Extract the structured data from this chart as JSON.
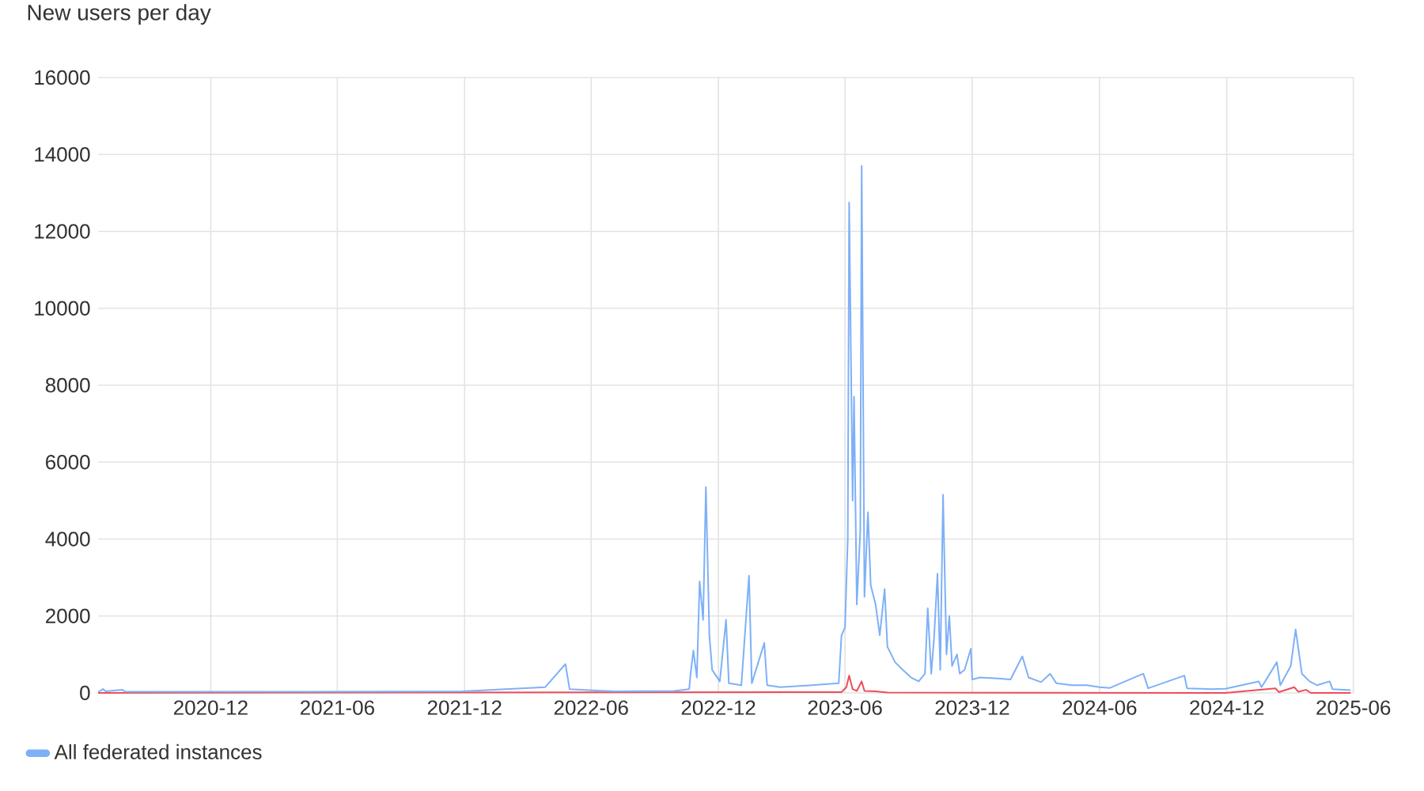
{
  "chart_data": {
    "type": "line",
    "title": "New users per day",
    "xlim": [
      "2020-06-22",
      "2025-06-01"
    ],
    "xticks": [
      "2020-12",
      "2021-06",
      "2021-12",
      "2022-06",
      "2022-12",
      "2023-06",
      "2023-12",
      "2024-06",
      "2024-12",
      "2025-06"
    ],
    "ylim": [
      0,
      16000
    ],
    "yticks": [
      0,
      2000,
      4000,
      6000,
      8000,
      10000,
      12000,
      14000,
      16000
    ],
    "grid": true,
    "legend": "bottom left",
    "series": [
      {
        "color": "#ee4d5a",
        "x": [
          "2020-06-22",
          "2023-05-27",
          "2023-06-03",
          "2023-06-07",
          "2023-06-12",
          "2023-06-18",
          "2023-06-25",
          "2023-06-29",
          "2023-07-15",
          "2023-08-01",
          "2024-11-29",
          "2025-02-09",
          "2025-02-14",
          "2025-03-08",
          "2025-03-14",
          "2025-03-25",
          "2025-04-01",
          "2025-05-28"
        ],
        "values": [
          0,
          20,
          150,
          450,
          100,
          50,
          300,
          50,
          40,
          10,
          0,
          120,
          20,
          150,
          30,
          80,
          0,
          0
        ]
      },
      {
        "name": "All federated instances",
        "color": "#7eb0f8",
        "x": [
          "2020-06-22",
          "2020-06-29",
          "2020-07-03",
          "2020-07-27",
          "2020-07-31",
          "2020-09-13",
          "2021-04-20",
          "2021-11-27",
          "2022-03-27",
          "2022-04-25",
          "2022-05-01",
          "2022-07-04",
          "2022-09-28",
          "2022-10-20",
          "2022-10-22",
          "2022-10-26",
          "2022-10-31",
          "2022-11-04",
          "2022-11-09",
          "2022-11-13",
          "2022-11-18",
          "2022-11-22",
          "2022-12-03",
          "2022-12-12",
          "2022-12-16",
          "2023-01-03",
          "2023-01-14",
          "2023-01-18",
          "2023-02-05",
          "2023-02-09",
          "2023-02-28",
          "2023-04-14",
          "2023-05-23",
          "2023-05-27",
          "2023-06-01",
          "2023-06-05",
          "2023-06-07",
          "2023-06-12",
          "2023-06-14",
          "2023-06-18",
          "2023-06-23",
          "2023-06-25",
          "2023-06-29",
          "2023-07-04",
          "2023-07-08",
          "2023-07-15",
          "2023-07-21",
          "2023-07-28",
          "2023-08-01",
          "2023-08-12",
          "2023-08-23",
          "2023-09-04",
          "2023-09-15",
          "2023-09-24",
          "2023-09-28",
          "2023-10-03",
          "2023-10-07",
          "2023-10-12",
          "2023-10-16",
          "2023-10-20",
          "2023-10-25",
          "2023-10-29",
          "2023-11-02",
          "2023-11-09",
          "2023-11-13",
          "2023-11-20",
          "2023-11-29",
          "2023-12-01",
          "2023-12-12",
          "2024-01-03",
          "2024-01-25",
          "2024-02-11",
          "2024-02-20",
          "2024-03-09",
          "2024-03-22",
          "2024-03-31",
          "2024-04-22",
          "2024-05-14",
          "2024-06-01",
          "2024-06-16",
          "2024-08-03",
          "2024-08-10",
          "2024-10-01",
          "2024-10-05",
          "2024-11-08",
          "2024-11-29",
          "2025-01-16",
          "2025-01-20",
          "2025-02-11",
          "2025-02-16",
          "2025-03-03",
          "2025-03-10",
          "2025-03-19",
          "2025-03-30",
          "2025-04-10",
          "2025-04-28",
          "2025-05-02",
          "2025-05-28"
        ],
        "values": [
          20,
          100,
          40,
          80,
          30,
          30,
          30,
          40,
          150,
          750,
          100,
          40,
          50,
          100,
          500,
          1100,
          400,
          2900,
          1900,
          5350,
          1500,
          600,
          300,
          1900,
          250,
          200,
          3050,
          250,
          1300,
          200,
          150,
          200,
          250,
          1500,
          1700,
          4000,
          12750,
          5000,
          7700,
          2300,
          4200,
          13700,
          2500,
          4700,
          2800,
          2300,
          1500,
          2700,
          1200,
          800,
          600,
          400,
          300,
          500,
          2200,
          500,
          1400,
          3100,
          600,
          5150,
          1000,
          2000,
          700,
          1000,
          500,
          600,
          1150,
          350,
          400,
          380,
          350,
          950,
          400,
          280,
          500,
          250,
          200,
          200,
          150,
          130,
          500,
          120,
          450,
          120,
          100,
          110,
          300,
          150,
          800,
          200,
          700,
          1650,
          500,
          300,
          200,
          300,
          100,
          70
        ]
      }
    ]
  }
}
